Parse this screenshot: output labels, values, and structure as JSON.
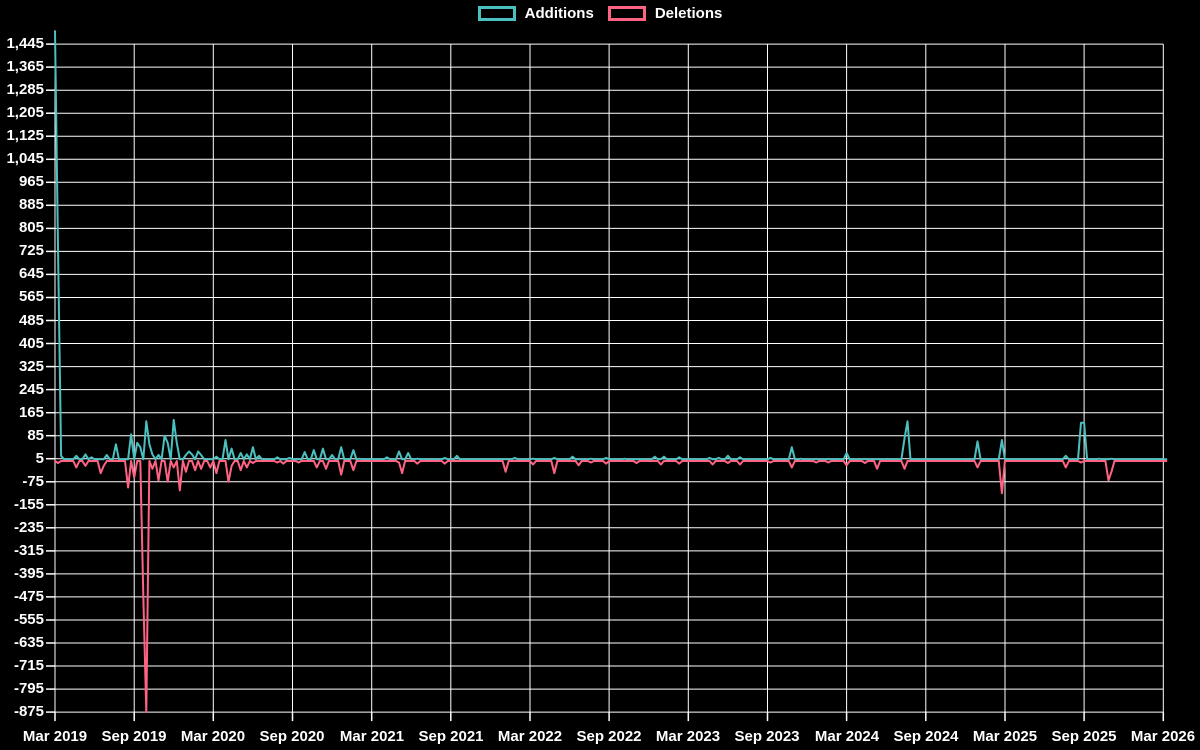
{
  "legend": {
    "items": [
      {
        "label": "Additions",
        "color": "#4bc0c0"
      },
      {
        "label": "Deletions",
        "color": "#ff6384"
      }
    ]
  },
  "chart_data": {
    "type": "line",
    "title": "",
    "xlabel": "",
    "ylabel": "",
    "background": "#000000",
    "grid": true,
    "grid_color": "#ffffff",
    "text_color": "#ffffff",
    "legend_position": "top-center",
    "x_tick_labels": [
      "Mar 2019",
      "Sep 2019",
      "Mar 2020",
      "Sep 2020",
      "Mar 2021",
      "Sep 2021",
      "Mar 2022",
      "Sep 2022",
      "Mar 2023",
      "Sep 2023",
      "Mar 2024",
      "Sep 2024",
      "Mar 2025",
      "Sep 2025",
      "Mar 2026"
    ],
    "y_tick_labels": [
      "1,445",
      "1,365",
      "1,285",
      "1,205",
      "1,125",
      "1,045",
      "965",
      "885",
      "805",
      "725",
      "645",
      "565",
      "485",
      "405",
      "325",
      "245",
      "165",
      "85",
      "5",
      "-75",
      "-155",
      "-235",
      "-315",
      "-395",
      "-475",
      "-555",
      "-635",
      "-715",
      "-795",
      "-875"
    ],
    "y_max_tick": 1445,
    "y_min_tick": -875,
    "y_step": 80,
    "weeks_total": 366,
    "x_units": "weeks since Mar 2019",
    "series": [
      {
        "name": "Additions",
        "color": "#4bc0c0",
        "baseline": 3,
        "points": [
          [
            0,
            1490
          ],
          [
            1,
            740
          ],
          [
            2,
            15
          ],
          [
            7,
            15
          ],
          [
            10,
            20
          ],
          [
            12,
            10
          ],
          [
            17,
            18
          ],
          [
            20,
            55
          ],
          [
            25,
            90
          ],
          [
            27,
            60
          ],
          [
            28,
            45
          ],
          [
            30,
            135
          ],
          [
            31,
            55
          ],
          [
            32,
            20
          ],
          [
            34,
            18
          ],
          [
            36,
            85
          ],
          [
            37,
            60
          ],
          [
            39,
            140
          ],
          [
            40,
            60
          ],
          [
            43,
            18
          ],
          [
            44,
            30
          ],
          [
            45,
            20
          ],
          [
            47,
            30
          ],
          [
            48,
            18
          ],
          [
            53,
            12
          ],
          [
            56,
            70
          ],
          [
            58,
            40
          ],
          [
            61,
            25
          ],
          [
            63,
            20
          ],
          [
            65,
            45
          ],
          [
            67,
            15
          ],
          [
            73,
            10
          ],
          [
            77,
            8
          ],
          [
            82,
            28
          ],
          [
            85,
            35
          ],
          [
            88,
            40
          ],
          [
            91,
            18
          ],
          [
            94,
            45
          ],
          [
            98,
            35
          ],
          [
            100,
            5
          ],
          [
            109,
            10
          ],
          [
            113,
            30
          ],
          [
            116,
            25
          ],
          [
            119,
            5
          ],
          [
            128,
            8
          ],
          [
            132,
            15
          ],
          [
            151,
            8
          ],
          [
            157,
            5
          ],
          [
            164,
            8
          ],
          [
            170,
            12
          ],
          [
            176,
            5
          ],
          [
            181,
            8
          ],
          [
            187,
            5
          ],
          [
            197,
            12
          ],
          [
            200,
            12
          ],
          [
            205,
            10
          ],
          [
            215,
            8
          ],
          [
            218,
            8
          ],
          [
            221,
            15
          ],
          [
            225,
            10
          ],
          [
            235,
            8
          ],
          [
            242,
            45
          ],
          [
            245,
            5
          ],
          [
            260,
            25
          ],
          [
            279,
            75
          ],
          [
            280,
            135
          ],
          [
            303,
            65
          ],
          [
            311,
            70
          ],
          [
            332,
            15
          ],
          [
            337,
            130
          ],
          [
            338,
            130
          ],
          [
            343,
            5
          ],
          [
            347,
            5
          ]
        ]
      },
      {
        "name": "Deletions",
        "color": "#ff6384",
        "baseline": -3,
        "points": [
          [
            1,
            -10
          ],
          [
            7,
            -25
          ],
          [
            10,
            -20
          ],
          [
            15,
            -45
          ],
          [
            16,
            -20
          ],
          [
            24,
            -95
          ],
          [
            26,
            -60
          ],
          [
            29,
            -470
          ],
          [
            30,
            -875
          ],
          [
            32,
            -30
          ],
          [
            34,
            -70
          ],
          [
            37,
            -75
          ],
          [
            39,
            -25
          ],
          [
            41,
            -105
          ],
          [
            43,
            -40
          ],
          [
            46,
            -35
          ],
          [
            48,
            -30
          ],
          [
            51,
            -25
          ],
          [
            53,
            -45
          ],
          [
            57,
            -75
          ],
          [
            58,
            -20
          ],
          [
            61,
            -35
          ],
          [
            63,
            -25
          ],
          [
            65,
            -10
          ],
          [
            73,
            -8
          ],
          [
            75,
            -12
          ],
          [
            80,
            -8
          ],
          [
            86,
            -25
          ],
          [
            89,
            -30
          ],
          [
            94,
            -50
          ],
          [
            98,
            -35
          ],
          [
            113,
            -8
          ],
          [
            114,
            -45
          ],
          [
            119,
            -12
          ],
          [
            128,
            -12
          ],
          [
            148,
            -40
          ],
          [
            157,
            -15
          ],
          [
            164,
            -45
          ],
          [
            172,
            -18
          ],
          [
            176,
            -8
          ],
          [
            181,
            -12
          ],
          [
            191,
            -10
          ],
          [
            199,
            -15
          ],
          [
            205,
            -12
          ],
          [
            216,
            -15
          ],
          [
            221,
            -10
          ],
          [
            225,
            -15
          ],
          [
            235,
            -8
          ],
          [
            242,
            -25
          ],
          [
            250,
            -8
          ],
          [
            254,
            -8
          ],
          [
            260,
            -18
          ],
          [
            266,
            -10
          ],
          [
            270,
            -30
          ],
          [
            279,
            -30
          ],
          [
            303,
            -25
          ],
          [
            311,
            -115
          ],
          [
            332,
            -25
          ],
          [
            337,
            -8
          ],
          [
            346,
            -70
          ],
          [
            347,
            -40
          ]
        ]
      }
    ]
  }
}
